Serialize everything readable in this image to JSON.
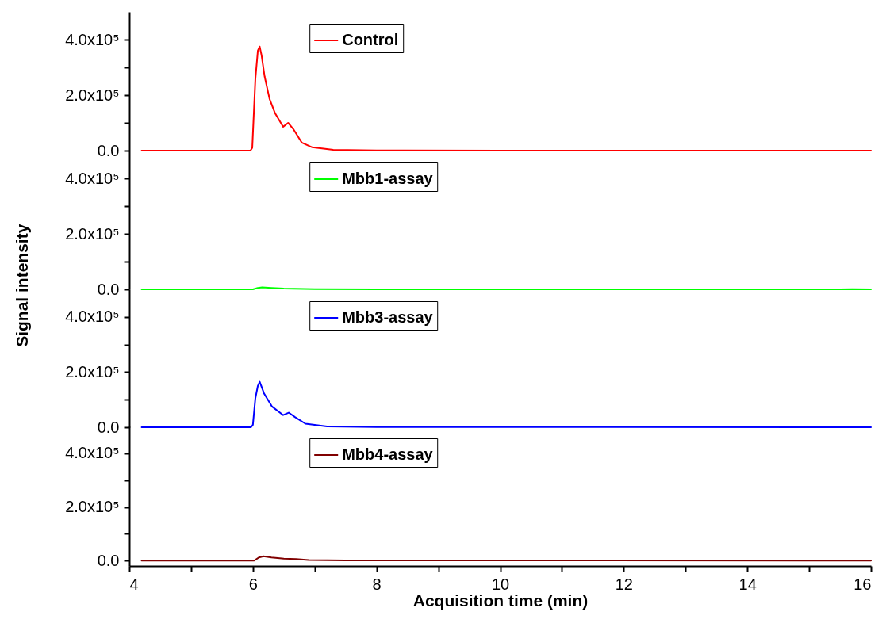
{
  "chart_data": [
    {
      "type": "line",
      "xlim": [
        4,
        16
      ],
      "ylim": [
        0,
        500000
      ],
      "yticks": [
        {
          "value": 0,
          "label": "0.0"
        },
        {
          "value": 100000,
          "label": null
        },
        {
          "value": 200000,
          "label": "2.0x10⁵"
        },
        {
          "value": 300000,
          "label": null
        },
        {
          "value": 400000,
          "label": "4.0x10⁵"
        }
      ],
      "tick_labels": "y",
      "legend": "top",
      "x": [
        4.2,
        5.5,
        5.96,
        5.99,
        6.04,
        6.08,
        6.11,
        6.14,
        6.19,
        6.27,
        6.36,
        6.49,
        6.57,
        6.66,
        6.79,
        6.96,
        7.3,
        8,
        10,
        12,
        16
      ],
      "series": [
        {
          "name": "Control",
          "color": "#ff0000",
          "values": [
            0,
            0,
            0,
            10000,
            258000,
            360000,
            375000,
            344000,
            267000,
            186000,
            134000,
            86000,
            100000,
            76000,
            29000,
            12000,
            3000,
            1000,
            0,
            0,
            0
          ]
        }
      ]
    },
    {
      "type": "line",
      "xlim": [
        4,
        16
      ],
      "ylim": [
        0,
        500000
      ],
      "yticks": [
        {
          "value": 0,
          "label": "0.0"
        },
        {
          "value": 100000,
          "label": null
        },
        {
          "value": 200000,
          "label": "2.0x10⁵"
        },
        {
          "value": 300000,
          "label": null
        },
        {
          "value": 400000,
          "label": "4.0x10⁵"
        }
      ],
      "tick_labels": "y",
      "legend": "top",
      "ylabel": "Signal intensity",
      "x": [
        4.2,
        6.0,
        6.08,
        6.15,
        6.3,
        6.5,
        7,
        8,
        12,
        15.5,
        15.7,
        16
      ],
      "series": [
        {
          "name": "Mbb1-assay",
          "color": "#00ff00",
          "values": [
            0,
            0,
            5000,
            7000,
            5000,
            3000,
            1000,
            0,
            0,
            0,
            1000,
            0
          ]
        }
      ]
    },
    {
      "type": "line",
      "xlim": [
        4,
        16
      ],
      "ylim": [
        0,
        500000
      ],
      "yticks": [
        {
          "value": 0,
          "label": "0.0"
        },
        {
          "value": 100000,
          "label": null
        },
        {
          "value": 200000,
          "label": "2.0x10⁵"
        },
        {
          "value": 300000,
          "label": null
        },
        {
          "value": 400000,
          "label": "4.0x10⁵"
        }
      ],
      "tick_labels": "y",
      "legend": "top",
      "x": [
        4.2,
        5.97,
        6.0,
        6.04,
        6.08,
        6.11,
        6.18,
        6.31,
        6.49,
        6.58,
        6.68,
        6.85,
        7.2,
        8,
        16
      ],
      "series": [
        {
          "name": "Mbb3-assay",
          "color": "#0000ff",
          "values": [
            0,
            0,
            9000,
            105000,
            150000,
            165000,
            123000,
            75000,
            44000,
            53000,
            37000,
            13000,
            3000,
            1000,
            0
          ]
        }
      ]
    },
    {
      "type": "line",
      "xlim": [
        4,
        16
      ],
      "ylim": [
        -20000,
        500000
      ],
      "yticks": [
        {
          "value": 0,
          "label": "0.0"
        },
        {
          "value": 100000,
          "label": null
        },
        {
          "value": 200000,
          "label": "2.0x10⁵"
        },
        {
          "value": 300000,
          "label": null
        },
        {
          "value": 400000,
          "label": "4.0x10⁵"
        }
      ],
      "xticks": [
        4,
        {
          "value": 5,
          "label": null
        },
        6,
        {
          "value": 7,
          "label": null
        },
        8,
        {
          "value": 9,
          "label": null
        },
        10,
        {
          "value": 11,
          "label": null
        },
        12,
        {
          "value": 13,
          "label": null
        },
        14,
        {
          "value": 15,
          "label": null
        },
        16
      ],
      "legend": "top",
      "xlabel": "Acquisition time (min)",
      "x": [
        4.2,
        6.02,
        6.1,
        6.17,
        6.3,
        6.5,
        6.7,
        6.9,
        7.5,
        16
      ],
      "series": [
        {
          "name": "Mbb4-assay",
          "color": "#800000",
          "values": [
            0,
            0,
            12000,
            16000,
            12000,
            7000,
            6000,
            2000,
            1000,
            0
          ]
        }
      ]
    }
  ]
}
